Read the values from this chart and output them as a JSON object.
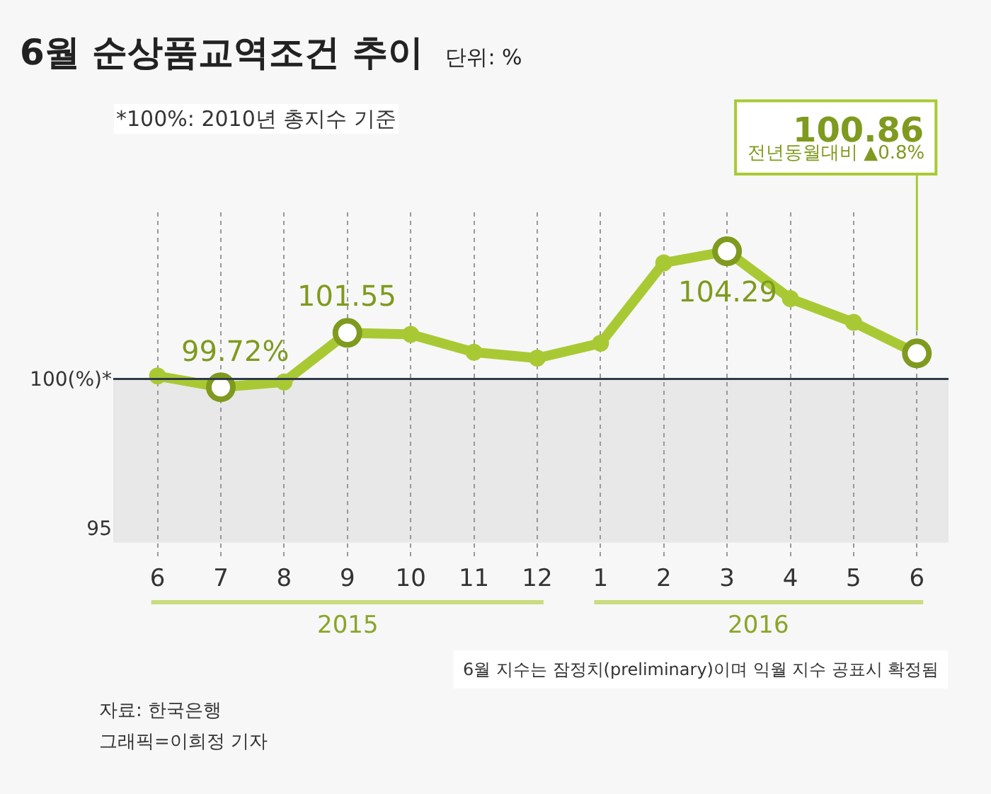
{
  "chart_data": {
    "type": "line",
    "title": "6월 순상품교역조건 추이",
    "subtitle": "단위: %",
    "categories": [
      "6",
      "7",
      "8",
      "9",
      "10",
      "11",
      "12",
      "1",
      "2",
      "3",
      "4",
      "5",
      "6"
    ],
    "series": [
      {
        "color": "#a9c934",
        "values": [
          100.1,
          99.72,
          99.9,
          101.55,
          101.5,
          100.9,
          100.7,
          101.2,
          103.9,
          104.29,
          102.7,
          101.9,
          100.86
        ],
        "value_labels": [
          null,
          "99.72%",
          null,
          "101.55",
          null,
          null,
          null,
          null,
          null,
          "104.29",
          null,
          null,
          "100.86"
        ]
      }
    ],
    "ylim": [
      93.9,
      105.6
    ],
    "yticks": [
      {
        "value": 100,
        "label": "100(%)*"
      },
      95
    ],
    "bands": [
      {
        "axis": "y",
        "from": 94.5,
        "to": 100,
        "color": "#e8e8e8"
      }
    ],
    "ref_lines": [
      {
        "axis": "y",
        "value": 100,
        "color": "#2f3a4a"
      }
    ],
    "grid": "x",
    "marker": "circle",
    "legend": false,
    "annotations": [
      "*100%: 2010년 총지수 기준",
      "2015",
      "2016",
      "전년동월대비 ▲0.8%",
      "6월 지수는 잠정치(preliminary)이며 익월 지수 공표시 확정됨",
      "자료: 한국은행",
      "그래픽=이희정 기자"
    ]
  }
}
